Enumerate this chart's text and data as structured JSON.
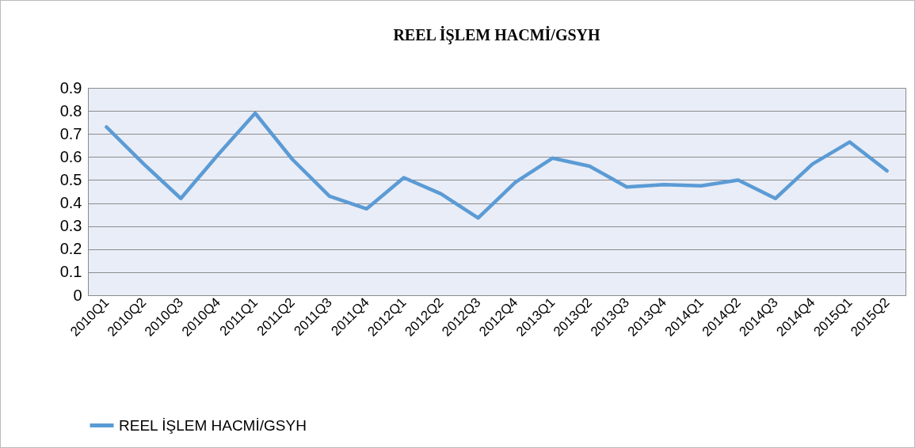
{
  "chart_data": {
    "type": "line",
    "title": "REEL İŞLEM HACMİ/GSYH",
    "categories": [
      "2010Q1",
      "2010Q2",
      "2010Q3",
      "2010Q4",
      "2011Q1",
      "2011Q2",
      "2011Q3",
      "2011Q4",
      "2012Q1",
      "2012Q2",
      "2012Q3",
      "2012Q4",
      "2013Q1",
      "2013Q2",
      "2013Q3",
      "2013Q4",
      "2014Q1",
      "2014Q2",
      "2014Q3",
      "2014Q4",
      "2015Q1",
      "2015Q2"
    ],
    "series": [
      {
        "name": "REEL İŞLEM HACMİ/GSYH",
        "color": "#5b9bd5",
        "values": [
          0.73,
          0.57,
          0.42,
          0.61,
          0.79,
          0.59,
          0.43,
          0.375,
          0.51,
          0.44,
          0.335,
          0.49,
          0.595,
          0.56,
          0.47,
          0.48,
          0.475,
          0.5,
          0.42,
          0.57,
          0.665,
          0.54
        ]
      }
    ],
    "ylim": [
      0,
      0.9
    ],
    "yticks": [
      0,
      0.1,
      0.2,
      0.3,
      0.4,
      0.5,
      0.6,
      0.7,
      0.8,
      0.9
    ],
    "grid": "y",
    "legend": "bottom",
    "marker": "none",
    "line_style": "solid"
  }
}
